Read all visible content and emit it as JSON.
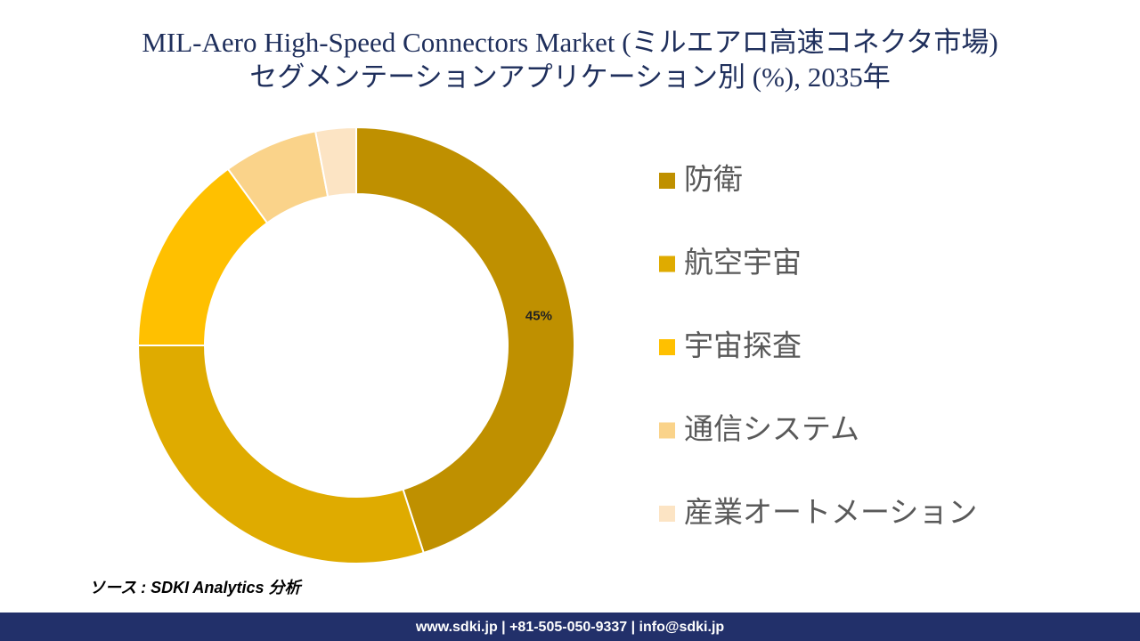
{
  "chart_data": {
    "type": "pie",
    "donut": true,
    "title": "MIL-Aero High-Speed Connectors Market (ミルエアロ高速コネクタ市場)",
    "subtitle": "セグメンテーションアプリケーション別 (%), 2035年",
    "categories": [
      "防衛",
      "航空宇宙",
      "宇宙探査",
      "通信システム",
      "産業オートメーション"
    ],
    "values": [
      45,
      30,
      15,
      7,
      3
    ],
    "value_labels": [
      "45%",
      null,
      null,
      null,
      null
    ],
    "colors": [
      "#bf9000",
      "#dfab00",
      "#ffc000",
      "#fad38a",
      "#fce4c4"
    ],
    "legend": "right"
  },
  "source": "ソース : SDKI Analytics 分析",
  "footer": "www.sdki.jp | +81-505-050-9337 | info@sdki.jp"
}
